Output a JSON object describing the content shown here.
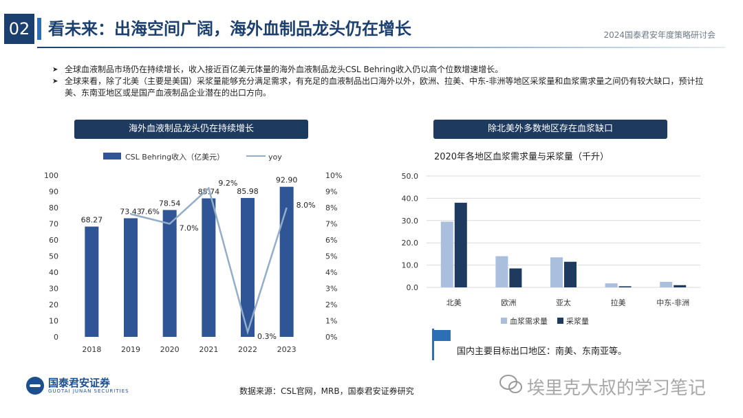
{
  "header": {
    "section_number": "02",
    "title": "看未来：出海空间广阔，海外血制品龙头仍在增长",
    "top_right": "2024国泰君安年度策略研讨会"
  },
  "bullets": [
    {
      "marker": "➤",
      "text": "全球血液制品市场仍在持续增长，收入接近百亿美元体量的海外血液制品龙头CSL Behring收入仍以高个位数增速增长。"
    },
    {
      "marker": "➤",
      "text": "全球来看，除了北美（主要是美国）采浆量能够充分满足需求，有充足的血液制品出口海外以外，欧洲、拉美、中东-非洲等地区采浆量和血浆需求量之间仍有较大缺口，预计拉美、东南亚地区或是国产血液制品企业潜在的出口方向。"
    }
  ],
  "left_panel": {
    "title": "海外血液制品龙头仍在持续增长"
  },
  "right_panel": {
    "title": "除北美外多数地区存在血浆缺口"
  },
  "right_note": "国内主要目标出口地区：南美、东南亚等。",
  "footer": {
    "logo_cn": "国泰君安证券",
    "logo_en": "GUOTAI JUNAN SECURITIES",
    "source": "数据来源：CSL官网，MRB，国泰君安证券研究",
    "watermark": "埃里克大叔的学习笔记"
  },
  "colors": {
    "navy": "#1e3a5f",
    "bar_dark": "#2f5597",
    "bar_light": "#a9bfdd",
    "line": "#93adc9",
    "accent_blue": "#2d6fb3"
  },
  "chart_data": [
    {
      "type": "bar",
      "categories": [
        "2018",
        "2019",
        "2020",
        "2021",
        "2022",
        "2023"
      ],
      "series": [
        {
          "name": "CSL Behring收入（亿美元）",
          "type": "bar",
          "values": [
            68.27,
            73.43,
            78.54,
            85.74,
            85.98,
            92.9
          ],
          "labels": [
            "68.27",
            "73.43",
            "78.54",
            "85.74",
            "85.98",
            "92.90"
          ]
        },
        {
          "name": "yoy",
          "type": "line",
          "axis": "right",
          "values": [
            null,
            7.6,
            7.0,
            9.2,
            0.3,
            8.0
          ],
          "labels": [
            "",
            "7.6%",
            "7.0%",
            "9.2%",
            "0.3%",
            "8.0%"
          ]
        }
      ],
      "ylim": [
        0,
        100
      ],
      "y_ticks": [
        "0",
        "10",
        "20",
        "30",
        "40",
        "50",
        "60",
        "70",
        "80",
        "90",
        "100"
      ],
      "y2lim": [
        0,
        10
      ],
      "y2_ticks": [
        "0%",
        "1%",
        "2%",
        "3%",
        "4%",
        "5%",
        "6%",
        "7%",
        "8%",
        "9%",
        "10%"
      ],
      "legend_position": "top",
      "grid": false
    },
    {
      "type": "bar",
      "title": "2020年各地区血浆需求量与采浆量（千升）",
      "categories": [
        "北美",
        "欧洲",
        "亚太",
        "拉美",
        "中东-非洲"
      ],
      "series": [
        {
          "name": "血浆需求量",
          "values": [
            29.5,
            14.0,
            13.5,
            1.8,
            2.5
          ],
          "color": "#a9bfdd"
        },
        {
          "name": "采浆量",
          "values": [
            38.0,
            8.5,
            11.5,
            0.5,
            1.0
          ],
          "color": "#1e3a5f"
        }
      ],
      "ylim": [
        0,
        50
      ],
      "y_ticks": [
        "0.0",
        "10.0",
        "20.0",
        "30.0",
        "40.0",
        "50.0"
      ],
      "legend_position": "bottom",
      "grid": true
    }
  ]
}
